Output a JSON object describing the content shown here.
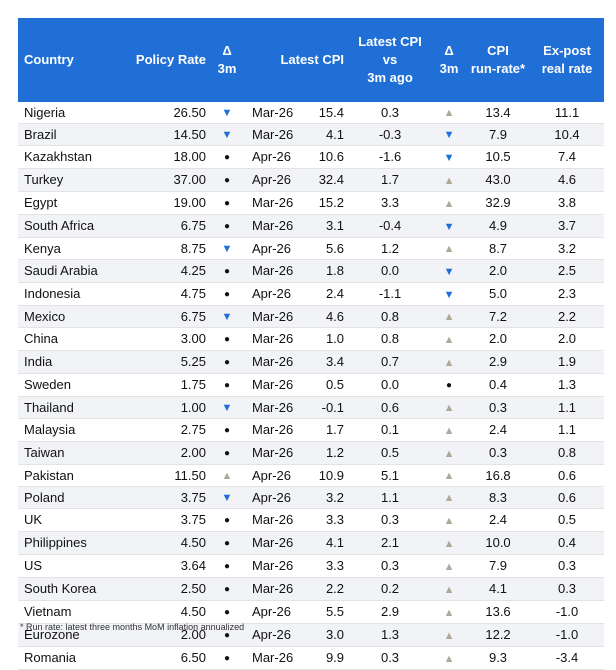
{
  "headers": {
    "country": "Country",
    "policy_rate": "Policy Rate",
    "delta_3m_rate_l1": "Δ",
    "delta_3m_rate_l2": "3m",
    "latest_cpi": "Latest CPI",
    "cpi_vs_l1": "Latest CPI",
    "cpi_vs_l2": "vs",
    "cpi_vs_l3": "3m ago",
    "delta_3m_cpi_l1": "Δ",
    "delta_3m_cpi_l2": "3m",
    "run_rate_l1": "CPI",
    "run_rate_l2": "run-rate*",
    "real_rate_l1": "Ex-post",
    "real_rate_l2": "real rate"
  },
  "colors": {
    "header_bg": "#1f6fd6",
    "down_arrow": "#1f6fd6",
    "up_arrow": "#b0a89a"
  },
  "rows": [
    {
      "country": "Nigeria",
      "policy_rate": "26.50",
      "rate_delta": "down",
      "cpi_date": "Mar-26",
      "cpi": "15.4",
      "cpi_vs_3m": "0.3",
      "cpi_delta": "up",
      "run_rate": "13.4",
      "real_rate": "11.1"
    },
    {
      "country": "Brazil",
      "policy_rate": "14.50",
      "rate_delta": "down",
      "cpi_date": "Mar-26",
      "cpi": "4.1",
      "cpi_vs_3m": "-0.3",
      "cpi_delta": "down",
      "run_rate": "7.9",
      "real_rate": "10.4"
    },
    {
      "country": "Kazakhstan",
      "policy_rate": "18.00",
      "rate_delta": "dot",
      "cpi_date": "Apr-26",
      "cpi": "10.6",
      "cpi_vs_3m": "-1.6",
      "cpi_delta": "down",
      "run_rate": "10.5",
      "real_rate": "7.4"
    },
    {
      "country": "Turkey",
      "policy_rate": "37.00",
      "rate_delta": "dot",
      "cpi_date": "Apr-26",
      "cpi": "32.4",
      "cpi_vs_3m": "1.7",
      "cpi_delta": "up",
      "run_rate": "43.0",
      "real_rate": "4.6"
    },
    {
      "country": "Egypt",
      "policy_rate": "19.00",
      "rate_delta": "dot",
      "cpi_date": "Mar-26",
      "cpi": "15.2",
      "cpi_vs_3m": "3.3",
      "cpi_delta": "up",
      "run_rate": "32.9",
      "real_rate": "3.8"
    },
    {
      "country": "South Africa",
      "policy_rate": "6.75",
      "rate_delta": "dot",
      "cpi_date": "Mar-26",
      "cpi": "3.1",
      "cpi_vs_3m": "-0.4",
      "cpi_delta": "down",
      "run_rate": "4.9",
      "real_rate": "3.7"
    },
    {
      "country": "Kenya",
      "policy_rate": "8.75",
      "rate_delta": "down",
      "cpi_date": "Apr-26",
      "cpi": "5.6",
      "cpi_vs_3m": "1.2",
      "cpi_delta": "up",
      "run_rate": "8.7",
      "real_rate": "3.2"
    },
    {
      "country": "Saudi Arabia",
      "policy_rate": "4.25",
      "rate_delta": "dot",
      "cpi_date": "Mar-26",
      "cpi": "1.8",
      "cpi_vs_3m": "0.0",
      "cpi_delta": "down",
      "run_rate": "2.0",
      "real_rate": "2.5"
    },
    {
      "country": "Indonesia",
      "policy_rate": "4.75",
      "rate_delta": "dot",
      "cpi_date": "Apr-26",
      "cpi": "2.4",
      "cpi_vs_3m": "-1.1",
      "cpi_delta": "down",
      "run_rate": "5.0",
      "real_rate": "2.3"
    },
    {
      "country": "Mexico",
      "policy_rate": "6.75",
      "rate_delta": "down",
      "cpi_date": "Mar-26",
      "cpi": "4.6",
      "cpi_vs_3m": "0.8",
      "cpi_delta": "up",
      "run_rate": "7.2",
      "real_rate": "2.2"
    },
    {
      "country": "China",
      "policy_rate": "3.00",
      "rate_delta": "dot",
      "cpi_date": "Mar-26",
      "cpi": "1.0",
      "cpi_vs_3m": "0.8",
      "cpi_delta": "up",
      "run_rate": "2.0",
      "real_rate": "2.0"
    },
    {
      "country": "India",
      "policy_rate": "5.25",
      "rate_delta": "dot",
      "cpi_date": "Mar-26",
      "cpi": "3.4",
      "cpi_vs_3m": "0.7",
      "cpi_delta": "up",
      "run_rate": "2.9",
      "real_rate": "1.9"
    },
    {
      "country": "Sweden",
      "policy_rate": "1.75",
      "rate_delta": "dot",
      "cpi_date": "Mar-26",
      "cpi": "0.5",
      "cpi_vs_3m": "0.0",
      "cpi_delta": "dot",
      "run_rate": "0.4",
      "real_rate": "1.3"
    },
    {
      "country": "Thailand",
      "policy_rate": "1.00",
      "rate_delta": "down",
      "cpi_date": "Mar-26",
      "cpi": "-0.1",
      "cpi_vs_3m": "0.6",
      "cpi_delta": "up",
      "run_rate": "0.3",
      "real_rate": "1.1"
    },
    {
      "country": "Malaysia",
      "policy_rate": "2.75",
      "rate_delta": "dot",
      "cpi_date": "Mar-26",
      "cpi": "1.7",
      "cpi_vs_3m": "0.1",
      "cpi_delta": "up",
      "run_rate": "2.4",
      "real_rate": "1.1"
    },
    {
      "country": "Taiwan",
      "policy_rate": "2.00",
      "rate_delta": "dot",
      "cpi_date": "Mar-26",
      "cpi": "1.2",
      "cpi_vs_3m": "0.5",
      "cpi_delta": "up",
      "run_rate": "0.3",
      "real_rate": "0.8"
    },
    {
      "country": "Pakistan",
      "policy_rate": "11.50",
      "rate_delta": "up",
      "cpi_date": "Apr-26",
      "cpi": "10.9",
      "cpi_vs_3m": "5.1",
      "cpi_delta": "up",
      "run_rate": "16.8",
      "real_rate": "0.6"
    },
    {
      "country": "Poland",
      "policy_rate": "3.75",
      "rate_delta": "down",
      "cpi_date": "Apr-26",
      "cpi": "3.2",
      "cpi_vs_3m": "1.1",
      "cpi_delta": "up",
      "run_rate": "8.3",
      "real_rate": "0.6"
    },
    {
      "country": "UK",
      "policy_rate": "3.75",
      "rate_delta": "dot",
      "cpi_date": "Mar-26",
      "cpi": "3.3",
      "cpi_vs_3m": "0.3",
      "cpi_delta": "up",
      "run_rate": "2.4",
      "real_rate": "0.5"
    },
    {
      "country": "Philippines",
      "policy_rate": "4.50",
      "rate_delta": "dot",
      "cpi_date": "Mar-26",
      "cpi": "4.1",
      "cpi_vs_3m": "2.1",
      "cpi_delta": "up",
      "run_rate": "10.0",
      "real_rate": "0.4"
    },
    {
      "country": "US",
      "policy_rate": "3.64",
      "rate_delta": "dot",
      "cpi_date": "Mar-26",
      "cpi": "3.3",
      "cpi_vs_3m": "0.3",
      "cpi_delta": "up",
      "run_rate": "7.9",
      "real_rate": "0.3"
    },
    {
      "country": "South Korea",
      "policy_rate": "2.50",
      "rate_delta": "dot",
      "cpi_date": "Mar-26",
      "cpi": "2.2",
      "cpi_vs_3m": "0.2",
      "cpi_delta": "up",
      "run_rate": "4.1",
      "real_rate": "0.3"
    },
    {
      "country": "Vietnam",
      "policy_rate": "4.50",
      "rate_delta": "dot",
      "cpi_date": "Apr-26",
      "cpi": "5.5",
      "cpi_vs_3m": "2.9",
      "cpi_delta": "up",
      "run_rate": "13.6",
      "real_rate": "-1.0"
    },
    {
      "country": "Eurozone",
      "policy_rate": "2.00",
      "rate_delta": "dot",
      "cpi_date": "Apr-26",
      "cpi": "3.0",
      "cpi_vs_3m": "1.3",
      "cpi_delta": "up",
      "run_rate": "12.2",
      "real_rate": "-1.0"
    },
    {
      "country": "Romania",
      "policy_rate": "6.50",
      "rate_delta": "dot",
      "cpi_date": "Mar-26",
      "cpi": "9.9",
      "cpi_vs_3m": "0.3",
      "cpi_delta": "up",
      "run_rate": "9.3",
      "real_rate": "-3.4"
    }
  ],
  "footnote": "* Run rate: latest three months MoM inflation annualized"
}
